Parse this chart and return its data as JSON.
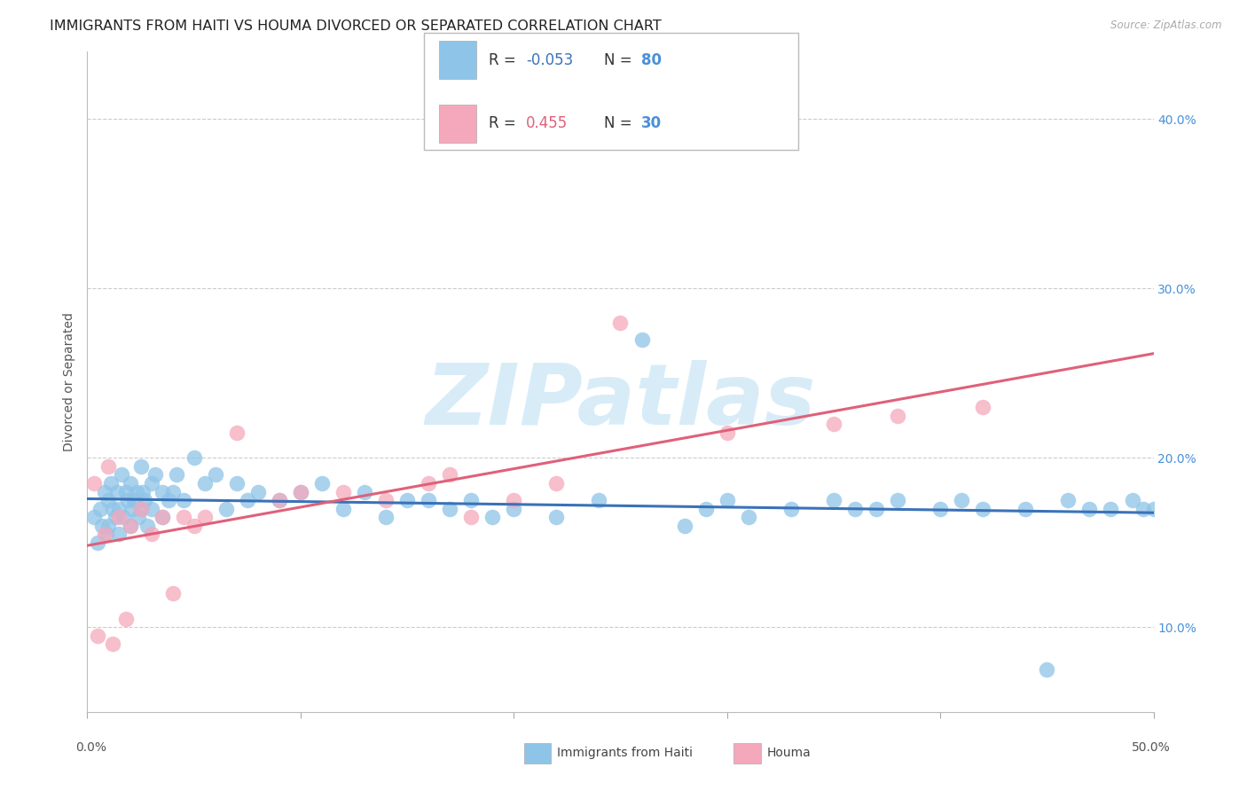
{
  "title": "IMMIGRANTS FROM HAITI VS HOUMA DIVORCED OR SEPARATED CORRELATION CHART",
  "source": "Source: ZipAtlas.com",
  "ylabel": "Divorced or Separated",
  "xlim": [
    0.0,
    50.0
  ],
  "ylim": [
    5.0,
    44.0
  ],
  "ytick_vals": [
    10.0,
    20.0,
    30.0,
    40.0
  ],
  "ytick_labels": [
    "10.0%",
    "20.0%",
    "30.0%",
    "40.0%"
  ],
  "haiti_R": -0.053,
  "haiti_N": 80,
  "houma_R": 0.455,
  "houma_N": 30,
  "haiti_color": "#8ec4e8",
  "houma_color": "#f5a8bc",
  "haiti_line_color": "#3a72b8",
  "houma_line_color": "#e0607a",
  "right_tick_color": "#4a90d9",
  "background_color": "#ffffff",
  "grid_color": "#cccccc",
  "watermark": "ZIPatlas",
  "watermark_color": "#d8ecf8",
  "title_fontsize": 11.5,
  "axis_label_fontsize": 10,
  "tick_fontsize": 10,
  "legend_fontsize": 12,
  "haiti_scatter_x": [
    0.3,
    0.5,
    0.6,
    0.7,
    0.8,
    0.9,
    1.0,
    1.0,
    1.1,
    1.2,
    1.3,
    1.4,
    1.5,
    1.5,
    1.6,
    1.7,
    1.8,
    1.9,
    2.0,
    2.0,
    2.1,
    2.2,
    2.3,
    2.4,
    2.5,
    2.5,
    2.6,
    2.7,
    2.8,
    3.0,
    3.0,
    3.2,
    3.5,
    3.5,
    3.8,
    4.0,
    4.2,
    4.5,
    5.0,
    5.5,
    6.0,
    6.5,
    7.0,
    7.5,
    8.0,
    9.0,
    10.0,
    11.0,
    12.0,
    13.0,
    14.0,
    15.0,
    16.0,
    17.0,
    18.0,
    19.0,
    20.0,
    22.0,
    24.0,
    26.0,
    28.0,
    29.0,
    30.0,
    31.0,
    33.0,
    35.0,
    36.0,
    37.0,
    38.0,
    40.0,
    41.0,
    42.0,
    44.0,
    45.0,
    46.0,
    47.0,
    48.0,
    49.0,
    49.5,
    50.0
  ],
  "haiti_scatter_y": [
    16.5,
    15.0,
    17.0,
    16.0,
    18.0,
    15.5,
    17.5,
    16.0,
    18.5,
    17.0,
    16.5,
    18.0,
    17.0,
    15.5,
    19.0,
    16.5,
    18.0,
    17.5,
    16.0,
    18.5,
    17.0,
    17.5,
    18.0,
    16.5,
    17.0,
    19.5,
    18.0,
    17.5,
    16.0,
    18.5,
    17.0,
    19.0,
    18.0,
    16.5,
    17.5,
    18.0,
    19.0,
    17.5,
    20.0,
    18.5,
    19.0,
    17.0,
    18.5,
    17.5,
    18.0,
    17.5,
    18.0,
    18.5,
    17.0,
    18.0,
    16.5,
    17.5,
    17.5,
    17.0,
    17.5,
    16.5,
    17.0,
    16.5,
    17.5,
    27.0,
    16.0,
    17.0,
    17.5,
    16.5,
    17.0,
    17.5,
    17.0,
    17.0,
    17.5,
    17.0,
    17.5,
    17.0,
    17.0,
    7.5,
    17.5,
    17.0,
    17.0,
    17.5,
    17.0,
    17.0
  ],
  "houma_scatter_x": [
    0.3,
    0.5,
    0.8,
    1.0,
    1.2,
    1.5,
    1.8,
    2.0,
    2.5,
    3.0,
    3.5,
    4.0,
    4.5,
    5.0,
    5.5,
    7.0,
    9.0,
    10.0,
    12.0,
    14.0,
    16.0,
    17.0,
    18.0,
    20.0,
    22.0,
    25.0,
    30.0,
    35.0,
    38.0,
    42.0
  ],
  "houma_scatter_y": [
    18.5,
    9.5,
    15.5,
    19.5,
    9.0,
    16.5,
    10.5,
    16.0,
    17.0,
    15.5,
    16.5,
    12.0,
    16.5,
    16.0,
    16.5,
    21.5,
    17.5,
    18.0,
    18.0,
    17.5,
    18.5,
    19.0,
    16.5,
    17.5,
    18.5,
    28.0,
    21.5,
    22.0,
    22.5,
    23.0
  ]
}
